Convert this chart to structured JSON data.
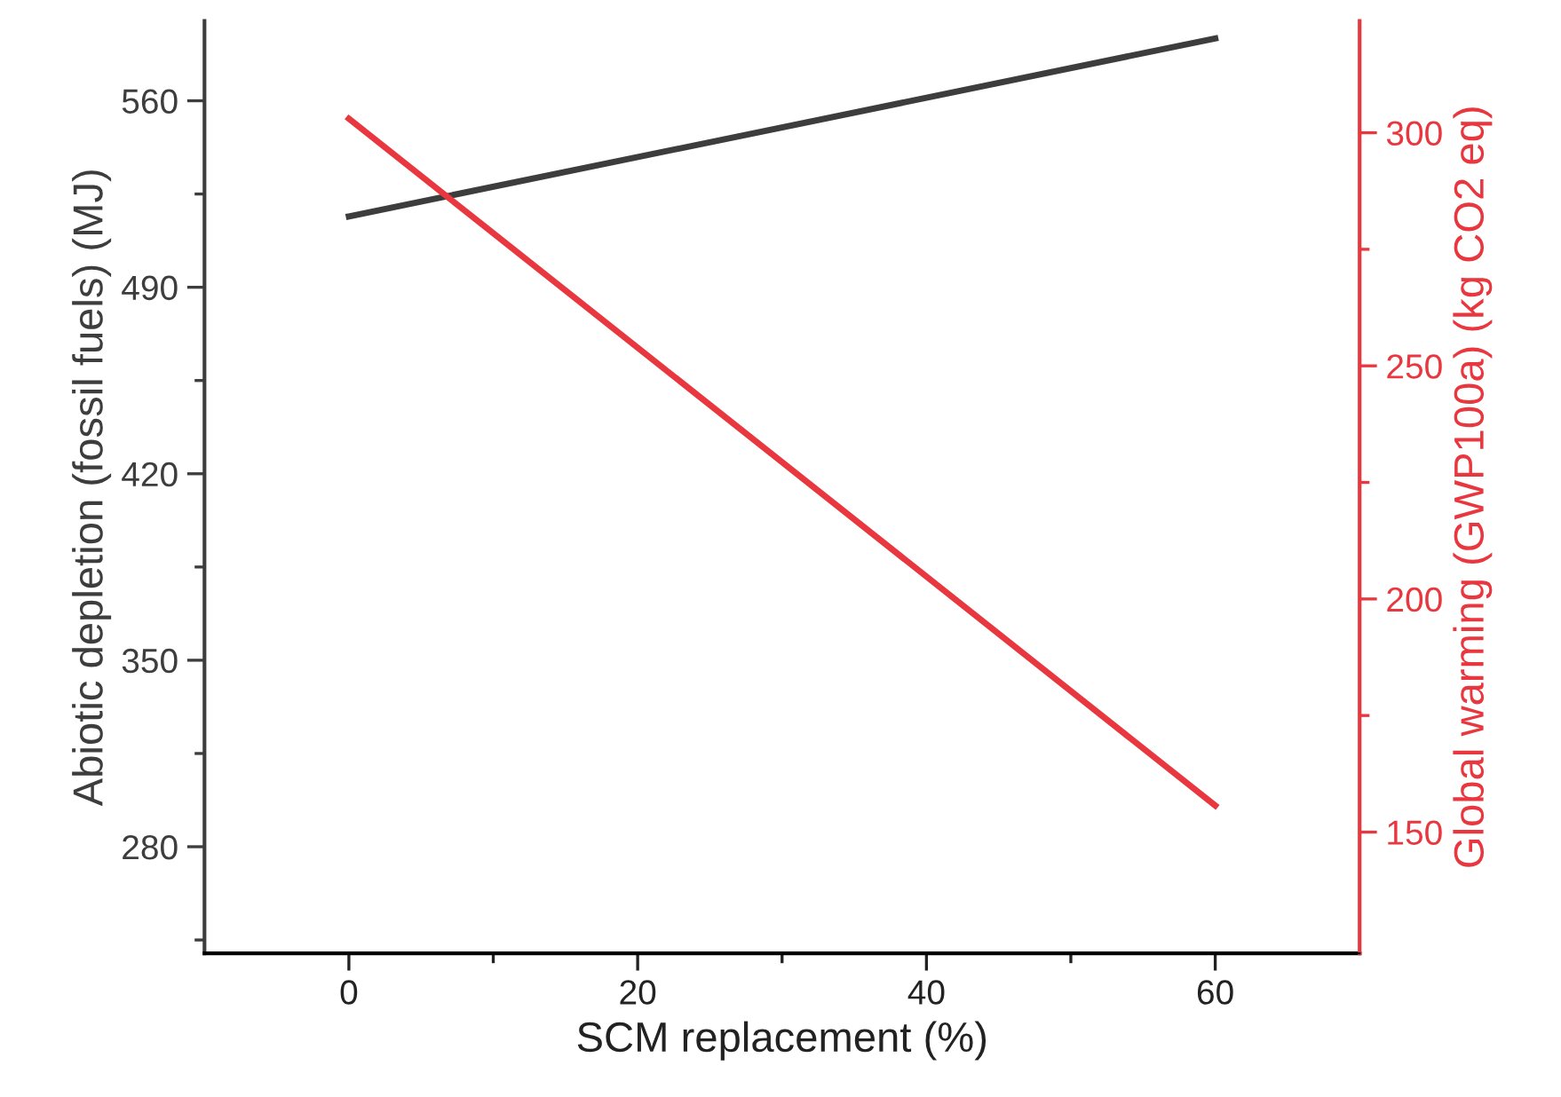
{
  "chart_data": {
    "type": "line",
    "xlabel": "SCM replacement (%)",
    "ylabel": "Abiotic depletion (fossil fuels) (MJ)",
    "y2label": "Global warming (GWP100a) (kg CO2 eq)",
    "x": [
      0,
      60
    ],
    "series": [
      {
        "color": "#3d3d3d",
        "values": [
          516.6,
          583.4
        ]
      },
      {
        "color": "#e8373e",
        "values": [
          303,
          155.7
        ],
        "axis": "y2"
      }
    ],
    "xlim": [
      -10,
      70
    ],
    "xticks": [
      0,
      20,
      40,
      60,
      {
        "value": 10,
        "label": null
      },
      {
        "value": 30,
        "label": null
      },
      {
        "value": 50,
        "label": null
      }
    ],
    "ylim": [
      240,
      590
    ],
    "yticks": [
      280,
      350,
      420,
      490,
      560,
      {
        "value": 245,
        "label": null
      },
      {
        "value": 315,
        "label": null
      },
      {
        "value": 385,
        "label": null
      },
      {
        "value": 455,
        "label": null
      },
      {
        "value": 525,
        "label": null
      }
    ],
    "y2lim": [
      124,
      324
    ],
    "y2ticks": [
      150,
      200,
      250,
      300,
      {
        "value": 175,
        "label": null
      },
      {
        "value": 225,
        "label": null
      },
      {
        "value": 275,
        "label": null
      }
    ],
    "grid": false,
    "legend": false,
    "marker": "none",
    "line_style": "solid"
  }
}
